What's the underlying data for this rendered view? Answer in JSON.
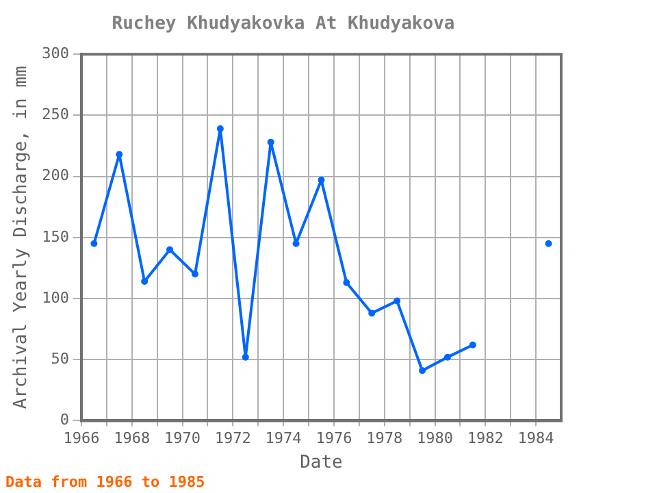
{
  "chart_data": {
    "type": "line",
    "title": "Ruchey Khudyakovka At Khudyakova",
    "xlabel": "Date",
    "ylabel": "Archival Yearly Discharge, in mm",
    "x": [
      1966.5,
      1967.5,
      1968.5,
      1969.5,
      1970.5,
      1971.5,
      1972.5,
      1973.5,
      1974.5,
      1975.5,
      1976.5,
      1977.5,
      1978.5,
      1979.5,
      1980.5,
      1981.5,
      1982.5,
      1983.5,
      1984.5
    ],
    "series": [
      {
        "color": "#0066ff",
        "values": [
          145,
          218,
          114,
          140,
          120,
          239,
          52,
          228,
          145,
          197,
          113,
          88,
          98,
          41,
          52,
          62,
          null,
          null,
          145
        ]
      }
    ],
    "xlim": [
      1966,
      1985
    ],
    "xticks": [
      1966,
      {
        "value": 1967,
        "label": null
      },
      1968,
      {
        "value": 1969,
        "label": null
      },
      1970,
      {
        "value": 1971,
        "label": null
      },
      1972,
      {
        "value": 1973,
        "label": null
      },
      1974,
      {
        "value": 1975,
        "label": null
      },
      1976,
      {
        "value": 1977,
        "label": null
      },
      1978,
      {
        "value": 1979,
        "label": null
      },
      1980,
      {
        "value": 1981,
        "label": null
      },
      1982,
      {
        "value": 1983,
        "label": null
      },
      1984
    ],
    "ylim": [
      0,
      300
    ],
    "yticks": [
      0,
      50,
      100,
      150,
      200,
      250,
      300
    ],
    "grid": true,
    "legend": false,
    "marker": "circle",
    "line_style": "solid",
    "annotations": [
      "Data from 1966 to 1985"
    ]
  }
}
